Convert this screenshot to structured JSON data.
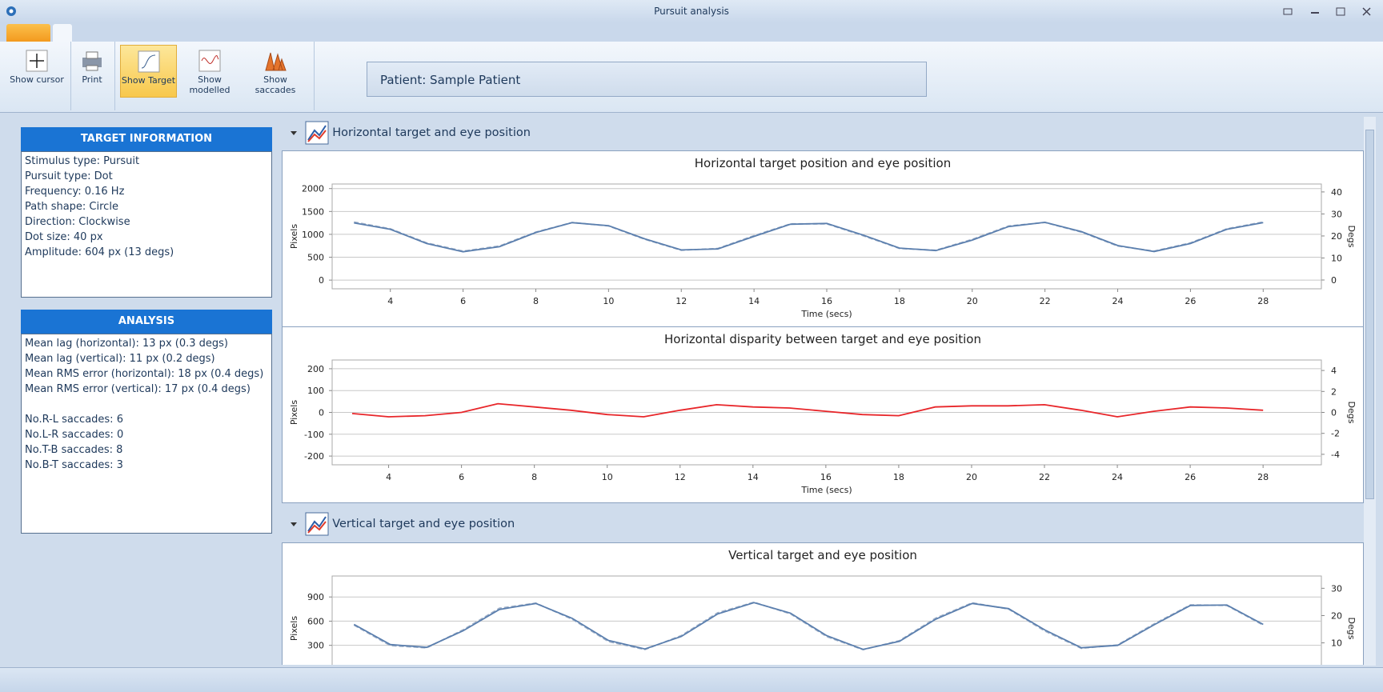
{
  "window": {
    "title": "Pursuit analysis"
  },
  "ribbon": {
    "buttons": [
      "Show cursor",
      "Print",
      "Show Target",
      "Show modelled",
      "Show saccades"
    ],
    "patient": "Patient: Sample Patient"
  },
  "target_information": {
    "title": "TARGET INFORMATION",
    "lines": [
      "Stimulus type: Pursuit",
      "Pursuit type: Dot",
      "Frequency: 0.16 Hz",
      "Path shape: Circle",
      "Direction: Clockwise",
      "Dot size: 40 px",
      "Amplitude: 604 px (13 degs)"
    ]
  },
  "analysis": {
    "title": "ANALYSIS",
    "lines": [
      "Mean lag (horizontal): 13 px (0.3 degs)",
      "Mean lag (vertical): 11 px (0.2 degs)",
      "Mean RMS error (horizontal): 18 px (0.4 degs)",
      "Mean RMS error (vertical): 17 px (0.4 degs)"
    ],
    "saccades": [
      "No.R-L saccades: 6",
      "No.L-R saccades: 0",
      "No.T-B saccades: 8",
      "No.B-T saccades: 3"
    ]
  },
  "groups": [
    "Horizontal target and eye position",
    "Vertical target and eye position"
  ],
  "chart_data": [
    {
      "type": "line",
      "title": "Horizontal target position and eye position",
      "x_label": "Time (secs)",
      "y_label": "Pixels",
      "y2_label": "Degs",
      "x": [
        3,
        4,
        5,
        6,
        7,
        8,
        9,
        10,
        11,
        12,
        13,
        14,
        15,
        16,
        17,
        18,
        19,
        20,
        21,
        22,
        23,
        24,
        25,
        26,
        27,
        28
      ],
      "xlim": [
        2.4,
        29.6
      ],
      "xticks": [
        4,
        6,
        8,
        10,
        12,
        14,
        16,
        18,
        20,
        22,
        24,
        26,
        28
      ],
      "ylim": [
        -190,
        2100
      ],
      "yticks": [
        0,
        500,
        1000,
        1500,
        2000
      ],
      "y2lim": [
        -4,
        43.6
      ],
      "y2ticks": [
        0,
        10,
        20,
        30,
        40
      ],
      "grid": true,
      "series": [
        {
          "color": "#9fb0c8",
          "dashed": true,
          "values": [
            1270,
            1121,
            814,
            633,
            746,
            1049,
            1260,
            1183,
            890,
            652,
            691,
            970,
            1230,
            1230,
            970,
            691,
            652,
            890,
            1183,
            1260,
            1049,
            746,
            633,
            814,
            1121,
            1270
          ]
        },
        {
          "color": "#5b7fae",
          "dashed": false,
          "values": [
            1250,
            1110,
            800,
            620,
            730,
            1040,
            1255,
            1190,
            900,
            660,
            680,
            955,
            1220,
            1238,
            985,
            700,
            645,
            875,
            1170,
            1262,
            1060,
            755,
            625,
            800,
            1110,
            1255
          ]
        }
      ]
    },
    {
      "type": "line",
      "title": "Horizontal disparity between target and eye position",
      "x_label": "Time (secs)",
      "y_label": "Pixels",
      "y2_label": "Degs",
      "x": [
        3,
        4,
        5,
        6,
        7,
        8,
        9,
        10,
        11,
        12,
        13,
        14,
        15,
        16,
        17,
        18,
        19,
        20,
        21,
        22,
        23,
        24,
        25,
        26,
        27,
        28
      ],
      "xlim": [
        2.45,
        29.6
      ],
      "xticks": [
        4,
        6,
        8,
        10,
        12,
        14,
        16,
        18,
        20,
        22,
        24,
        26,
        28
      ],
      "ylim": [
        -240,
        240
      ],
      "yticks": [
        -200,
        -100,
        0,
        100,
        200
      ],
      "y2lim": [
        -5,
        5
      ],
      "y2ticks": [
        -4,
        -2,
        0,
        2,
        4
      ],
      "grid": true,
      "series": [
        {
          "color": "#e8262a",
          "dashed": false,
          "values": [
            -5,
            -20,
            -15,
            0,
            40,
            25,
            10,
            -10,
            -20,
            10,
            35,
            25,
            20,
            5,
            -10,
            -15,
            25,
            30,
            30,
            35,
            10,
            -20,
            5,
            25,
            20,
            10
          ]
        }
      ]
    },
    {
      "type": "line",
      "title": "Vertical target and eye position",
      "y_label": "Pixels",
      "y2_label": "Degs",
      "x": [
        3,
        4,
        5,
        6,
        7,
        8,
        9,
        10,
        11,
        12,
        13,
        14,
        15,
        16,
        17,
        18,
        19,
        20,
        21,
        22,
        23,
        24,
        25,
        26,
        27,
        28
      ],
      "xlim": [
        2.4,
        29.6
      ],
      "ylim": [
        -140,
        1160
      ],
      "yticks": [
        300,
        600,
        900
      ],
      "y2lim": [
        -3.9,
        34.5
      ],
      "y2ticks": [
        10,
        20,
        30
      ],
      "grid": true,
      "series": [
        {
          "color": "#9fb0c8",
          "dashed": true,
          "values": [
            551,
            297,
            269,
            492,
            760,
            824,
            624,
            346,
            248,
            421,
            704,
            835,
            691,
            408,
            246,
            358,
            638,
            828,
            749,
            477,
            263,
            306,
            566,
            802,
            795,
            551
          ]
        },
        {
          "color": "#5b7fae",
          "dashed": false,
          "values": [
            560,
            310,
            275,
            480,
            745,
            820,
            635,
            360,
            255,
            410,
            690,
            830,
            700,
            420,
            250,
            350,
            625,
            820,
            755,
            490,
            270,
            300,
            555,
            795,
            800,
            560
          ]
        }
      ]
    }
  ]
}
